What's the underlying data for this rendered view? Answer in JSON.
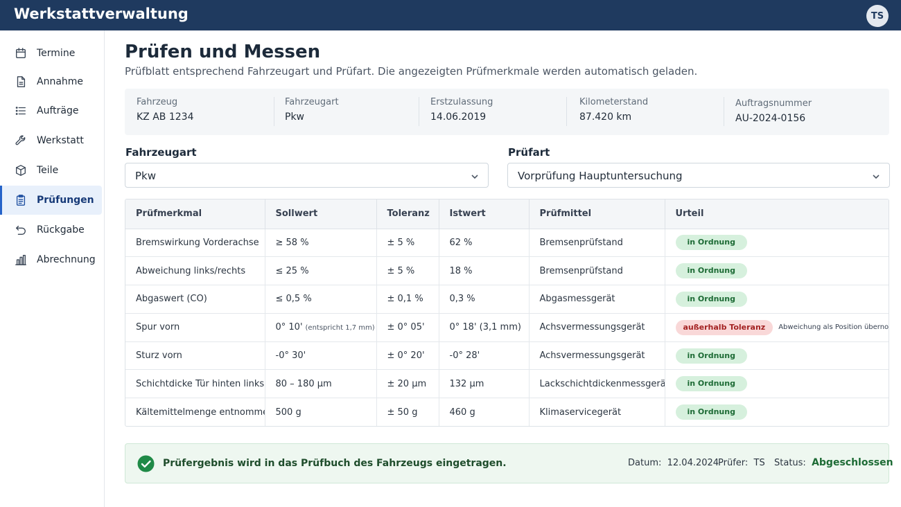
{
  "header": {
    "app_title": "Werkstattverwaltung",
    "user_initials": "TS"
  },
  "sidebar": {
    "items": [
      {
        "label": "Termine",
        "icon": "calendar-icon",
        "active": false
      },
      {
        "label": "Annahme",
        "icon": "document-icon",
        "active": false
      },
      {
        "label": "Aufträge",
        "icon": "list-icon",
        "active": false
      },
      {
        "label": "Werkstatt",
        "icon": "wrench-icon",
        "active": false
      },
      {
        "label": "Teile",
        "icon": "box-icon",
        "active": false
      },
      {
        "label": "Prüfungen",
        "icon": "clipboard-icon",
        "active": true
      },
      {
        "label": "Rückgabe",
        "icon": "return-arrow-icon",
        "active": false
      },
      {
        "label": "Abrechnung",
        "icon": "bar-chart-icon",
        "active": false
      }
    ]
  },
  "main": {
    "title": "Prüfen und Messen",
    "subtitle": "Prüfblatt entsprechend Fahrzeugart und Prüfart. Die angezeigten Prüfmerkmale werden automatisch geladen."
  },
  "vehicle_info": [
    {
      "label": "Fahrzeug",
      "value": "KZ  AB 1234"
    },
    {
      "label": "Fahrzeugart",
      "value": "Pkw"
    },
    {
      "label": "Erstzulassung",
      "value": "14.06.2019"
    },
    {
      "label": "Kilometerstand",
      "value": "87.420 km"
    },
    {
      "label": "Auftragsnummer",
      "value": "AU-2024-0156"
    }
  ],
  "filters": {
    "fahrzeugart": {
      "label": "Fahrzeugart",
      "value": "Pkw"
    },
    "pruefart": {
      "label": "Prüfart",
      "value": "Vorprüfung Hauptuntersuchung"
    }
  },
  "table": {
    "headers": [
      "Prüfmerkmal",
      "Sollwert",
      "Toleranz",
      "Istwert",
      "Prüfmittel",
      "Urteil"
    ],
    "rows": [
      {
        "merkmal": "Bremswirkung Vorderachse",
        "soll": "≥ 58 %",
        "soll_note": "",
        "toleranz": "± 5 %",
        "ist": "62 %",
        "mittel": "Bremsenprüfstand",
        "urteil": "in Ordnung",
        "status": "ok",
        "note": ""
      },
      {
        "merkmal": "Abweichung links/rechts",
        "soll": "≤ 25 %",
        "soll_note": "",
        "toleranz": "± 5 %",
        "ist": "18 %",
        "mittel": "Bremsenprüfstand",
        "urteil": "in Ordnung",
        "status": "ok",
        "note": ""
      },
      {
        "merkmal": "Abgaswert (CO)",
        "soll": "≤ 0,5 %",
        "soll_note": "",
        "toleranz": "± 0,1 %",
        "ist": "0,3 %",
        "mittel": "Abgasmessgerät",
        "urteil": "in Ordnung",
        "status": "ok",
        "note": ""
      },
      {
        "merkmal": "Spur vorn",
        "soll": "0° 10'",
        "soll_note": "(entspricht 1,7 mm)",
        "toleranz": "± 0° 05'",
        "ist": "0° 18' (3,1 mm)",
        "mittel": "Achsvermessungsgerät",
        "urteil": "außerhalb Toleranz",
        "status": "bad",
        "note": "Abweichung als Position übernommen"
      },
      {
        "merkmal": "Sturz vorn",
        "soll": "-0° 30'",
        "soll_note": "",
        "toleranz": "± 0° 20'",
        "ist": "-0° 28'",
        "mittel": "Achsvermessungsgerät",
        "urteil": "in Ordnung",
        "status": "ok",
        "note": ""
      },
      {
        "merkmal": "Schichtdicke Tür hinten links",
        "soll": "80 – 180 µm",
        "soll_note": "",
        "toleranz": "± 20 µm",
        "ist": "132 µm",
        "mittel": "Lackschichtdickenmessgerät",
        "urteil": "in Ordnung",
        "status": "ok",
        "note": ""
      },
      {
        "merkmal": "Kältemittelmenge entnommen",
        "soll": "500 g",
        "soll_note": "",
        "toleranz": "± 50 g",
        "ist": "460 g",
        "mittel": "Klimaservicegerät",
        "urteil": "in Ordnung",
        "status": "ok",
        "note": ""
      }
    ]
  },
  "result": {
    "message": "Prüfergebnis wird in das Prüfbuch des Fahrzeugs eingetragen.",
    "date_label": "Datum:",
    "date_value": "12.04.2024",
    "inspector_label": "Prüfer:",
    "inspector_value": "TS",
    "status_label": "Status:",
    "status_value": "Abgeschlossen"
  },
  "colors": {
    "header_bg": "#1f3a5f",
    "accent": "#2563c9",
    "ok": "#1d6b35",
    "bad": "#a32121"
  }
}
